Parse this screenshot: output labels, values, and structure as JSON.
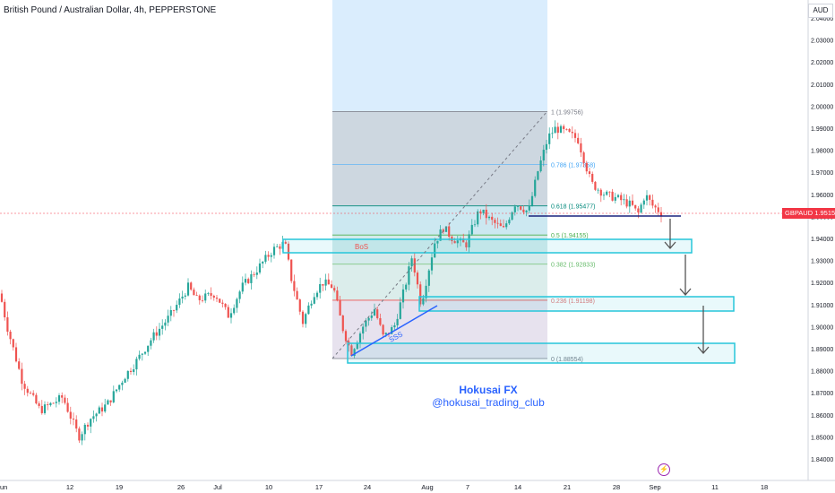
{
  "header": {
    "title": "British Pound / Australian Dollar, 4h, PEPPERSTONE",
    "currency": "AUD"
  },
  "price_tag": {
    "symbol": "GBPAUD",
    "value": "1.95155"
  },
  "branding": {
    "line1": "Hokusai FX",
    "line2": "@hokusai_trading_club"
  },
  "annotations": {
    "bos": "BoS",
    "sss": "SSS"
  },
  "alert_icon": "lightning-icon",
  "colors": {
    "up": "#26a69a",
    "down": "#ef5350",
    "accent": "#2962ff",
    "zone": "#26c6da",
    "price": "#f23645"
  },
  "chart_data": {
    "type": "candlestick",
    "title": "British Pound / Australian Dollar, 4h, PEPPERSTONE",
    "y_ticks": [
      "1.84000",
      "1.85000",
      "1.86000",
      "1.87000",
      "1.88000",
      "1.89000",
      "1.90000",
      "1.91000",
      "1.92000",
      "1.93000",
      "1.94000",
      "1.95000",
      "1.96000",
      "1.97000",
      "1.98000",
      "1.99000",
      "2.00000",
      "2.01000",
      "2.02000",
      "2.03000",
      "2.04000"
    ],
    "y_tick_values": [
      1.84,
      1.85,
      1.86,
      1.87,
      1.88,
      1.89,
      1.9,
      1.91,
      1.92,
      1.93,
      1.94,
      1.95,
      1.96,
      1.97,
      1.98,
      1.99,
      2.0,
      2.01,
      2.02,
      2.03,
      2.04
    ],
    "x_ticks": [
      "un",
      "12",
      "19",
      "26",
      "Jul",
      "10",
      "17",
      "24",
      "Aug",
      "7",
      "14",
      "21",
      "28",
      "Sep",
      "11",
      "18"
    ],
    "last_price": 1.95155,
    "fibonacci": [
      {
        "label": "1 (1.99756)",
        "level": 1.99756
      },
      {
        "label": "0.786 (1.97358)",
        "level": 1.97358
      },
      {
        "label": "0.618 (1.95477)",
        "level": 1.95477
      },
      {
        "label": "0.5 (1.94155)",
        "level": 1.94155
      },
      {
        "label": "0.382 (1.92833)",
        "level": 1.92833
      },
      {
        "label": "0.236 (1.91198)",
        "level": 1.91198
      },
      {
        "label": "0 (1.88554)",
        "level": 1.88554
      }
    ],
    "price_path": [
      [
        0,
        1.915
      ],
      [
        8,
        1.9
      ],
      [
        25,
        1.875
      ],
      [
        45,
        1.862
      ],
      [
        70,
        1.868
      ],
      [
        88,
        1.85
      ],
      [
        100,
        1.858
      ],
      [
        120,
        1.865
      ],
      [
        140,
        1.878
      ],
      [
        150,
        1.883
      ],
      [
        170,
        1.895
      ],
      [
        190,
        1.905
      ],
      [
        210,
        1.918
      ],
      [
        220,
        1.912
      ],
      [
        240,
        1.915
      ],
      [
        255,
        1.905
      ],
      [
        270,
        1.918
      ],
      [
        285,
        1.925
      ],
      [
        305,
        1.935
      ],
      [
        318,
        1.938
      ],
      [
        325,
        1.922
      ],
      [
        338,
        1.902
      ],
      [
        350,
        1.915
      ],
      [
        360,
        1.92
      ],
      [
        372,
        1.918
      ],
      [
        382,
        1.9
      ],
      [
        392,
        1.888
      ],
      [
        405,
        1.9
      ],
      [
        418,
        1.908
      ],
      [
        428,
        1.895
      ],
      [
        440,
        1.9
      ],
      [
        452,
        1.918
      ],
      [
        460,
        1.932
      ],
      [
        470,
        1.91
      ],
      [
        478,
        1.925
      ],
      [
        485,
        1.938
      ],
      [
        495,
        1.945
      ],
      [
        505,
        1.94
      ],
      [
        520,
        1.937
      ],
      [
        535,
        1.953
      ],
      [
        548,
        1.948
      ],
      [
        562,
        1.944
      ],
      [
        575,
        1.956
      ],
      [
        590,
        1.952
      ],
      [
        600,
        1.97
      ],
      [
        612,
        1.986
      ],
      [
        620,
        1.99
      ],
      [
        632,
        1.988
      ],
      [
        645,
        1.985
      ],
      [
        660,
        1.965
      ],
      [
        675,
        1.96
      ],
      [
        690,
        1.958
      ],
      [
        705,
        1.955
      ],
      [
        712,
        1.951
      ],
      [
        720,
        1.96
      ],
      [
        728,
        1.955
      ],
      [
        740,
        1.951
      ]
    ],
    "xlim": [
      0,
      870
    ],
    "ylim": [
      1.84,
      2.04
    ]
  }
}
